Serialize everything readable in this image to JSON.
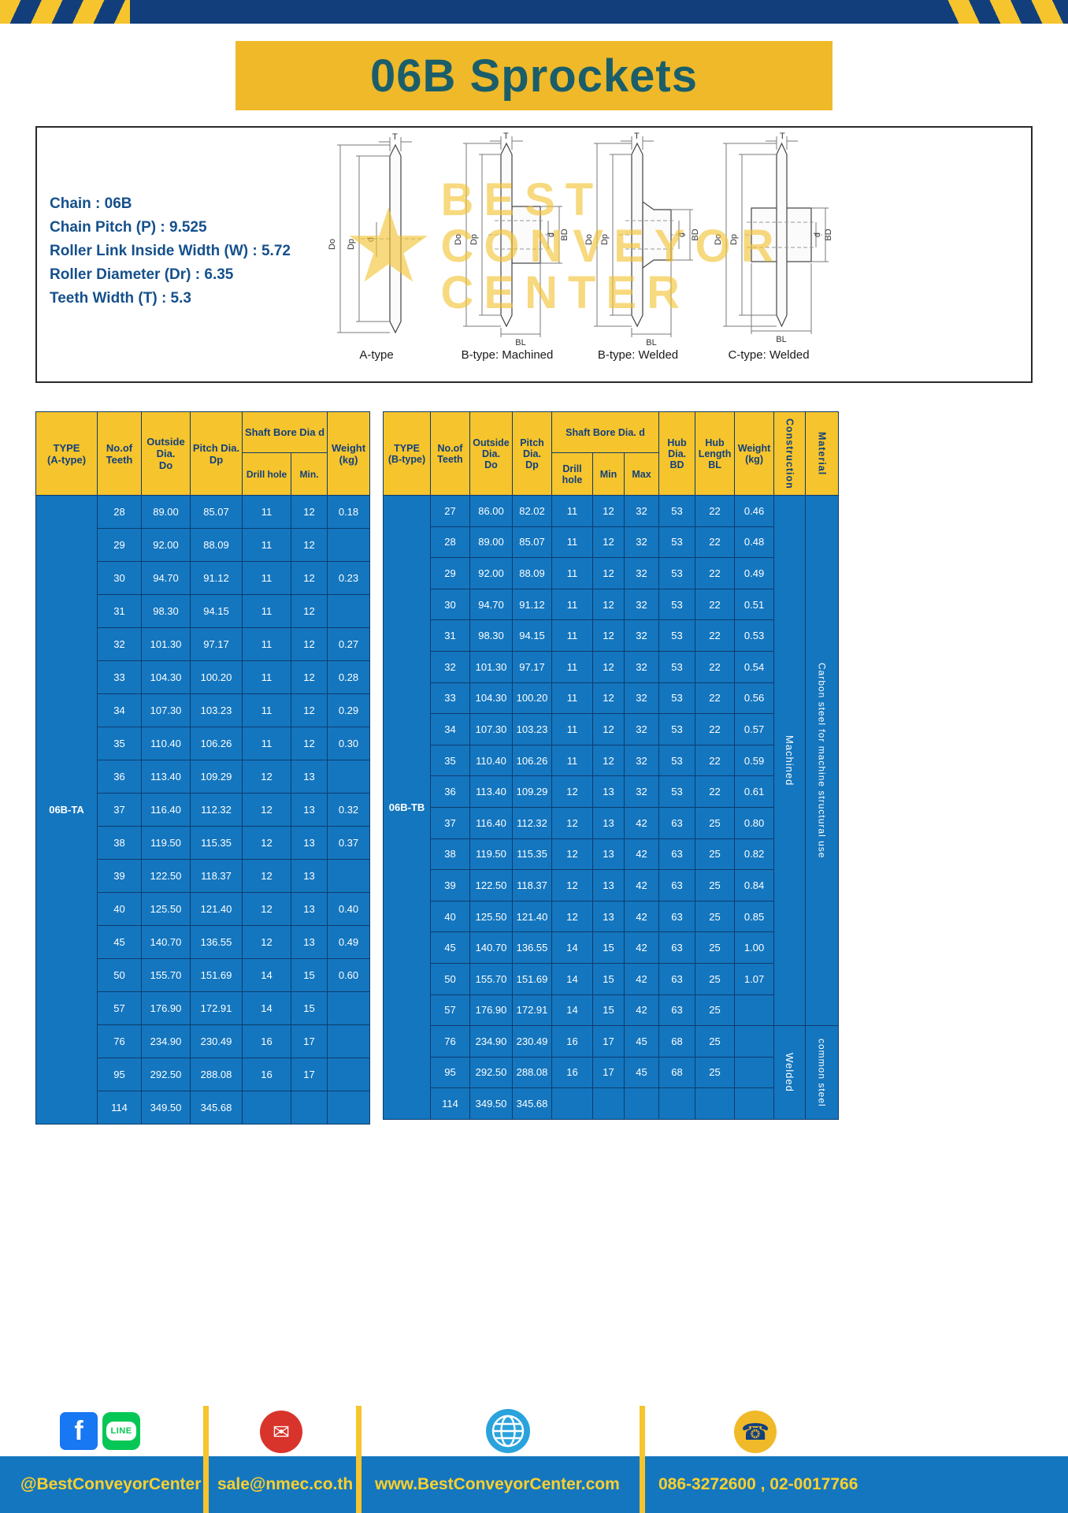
{
  "page": {
    "title": "06B Sprockets"
  },
  "specs": {
    "lines": [
      "Chain : 06B",
      "Chain Pitch (P) : 9.525",
      "Roller Link Inside Width (W) : 5.72",
      "Roller Diameter (Dr) : 6.35",
      "Teeth Width (T) : 5.3"
    ]
  },
  "watermark": {
    "star": "★",
    "line1": "BEST",
    "line2": "CONVEYOR",
    "line3": "CENTER"
  },
  "diagrams": {
    "items": [
      {
        "caption": "A-type",
        "t": "T",
        "do_label": "Do",
        "dp_label": "Dp",
        "d_label": "d"
      },
      {
        "caption": "B-type: Machined",
        "t": "T",
        "do_label": "Do",
        "dp_label": "Dp",
        "d_label": "d",
        "bd_label": "BD",
        "bl_label": "BL"
      },
      {
        "caption": "B-type: Welded",
        "t": "T",
        "do_label": "Do",
        "dp_label": "Dp",
        "d_label": "d",
        "bd_label": "BD",
        "bl_label": "BL"
      },
      {
        "caption": "C-type: Welded",
        "t": "T",
        "do_label": "Do",
        "dp_label": "Dp",
        "d_label": "d",
        "bd_label": "BD",
        "bl_label": "BL"
      }
    ]
  },
  "table_a": {
    "headers": {
      "type": "TYPE\n(A-type)",
      "teeth": "No.of\nTeeth",
      "outside": "Outside\nDia.\nDo",
      "pitch": "Pitch Dia.\nDp",
      "shaft": "Shaft Bore Dia d",
      "drill": "Drill hole",
      "min": "Min.",
      "weight": "Weight\n(kg)"
    },
    "type_value": "06B-TA",
    "rows": [
      [
        "28",
        "89.00",
        "85.07",
        "11",
        "12",
        "0.18"
      ],
      [
        "29",
        "92.00",
        "88.09",
        "11",
        "12",
        ""
      ],
      [
        "30",
        "94.70",
        "91.12",
        "11",
        "12",
        "0.23"
      ],
      [
        "31",
        "98.30",
        "94.15",
        "11",
        "12",
        ""
      ],
      [
        "32",
        "101.30",
        "97.17",
        "11",
        "12",
        "0.27"
      ],
      [
        "33",
        "104.30",
        "100.20",
        "11",
        "12",
        "0.28"
      ],
      [
        "34",
        "107.30",
        "103.23",
        "11",
        "12",
        "0.29"
      ],
      [
        "35",
        "110.40",
        "106.26",
        "11",
        "12",
        "0.30"
      ],
      [
        "36",
        "113.40",
        "109.29",
        "12",
        "13",
        ""
      ],
      [
        "37",
        "116.40",
        "112.32",
        "12",
        "13",
        "0.32"
      ],
      [
        "38",
        "119.50",
        "115.35",
        "12",
        "13",
        "0.37"
      ],
      [
        "39",
        "122.50",
        "118.37",
        "12",
        "13",
        ""
      ],
      [
        "40",
        "125.50",
        "121.40",
        "12",
        "13",
        "0.40"
      ],
      [
        "45",
        "140.70",
        "136.55",
        "12",
        "13",
        "0.49"
      ],
      [
        "50",
        "155.70",
        "151.69",
        "14",
        "15",
        "0.60"
      ],
      [
        "57",
        "176.90",
        "172.91",
        "14",
        "15",
        ""
      ],
      [
        "76",
        "234.90",
        "230.49",
        "16",
        "17",
        ""
      ],
      [
        "95",
        "292.50",
        "288.08",
        "16",
        "17",
        ""
      ],
      [
        "114",
        "349.50",
        "345.68",
        "",
        "",
        ""
      ]
    ]
  },
  "table_b": {
    "headers": {
      "type": "TYPE\n(B-type)",
      "teeth": "No.of\nTeeth",
      "outside": "Outside\nDia.\nDo",
      "pitch": "Pitch\nDia.\nDp",
      "shaft": "Shaft Bore Dia. d",
      "drill": "Drill hole",
      "min": "Min",
      "max": "Max",
      "hub_dia": "Hub\nDia.\nBD",
      "hub_len": "Hub\nLength\nBL",
      "weight": "Weight\n(kg)",
      "construction": "Construction",
      "material": "Material"
    },
    "type_value": "06B-TB",
    "construction_split": 17,
    "construction": [
      "Machined",
      "Welded"
    ],
    "material": [
      "Carbon steel for machine structural use",
      "common steel"
    ],
    "rows": [
      [
        "27",
        "86.00",
        "82.02",
        "11",
        "12",
        "32",
        "53",
        "22",
        "0.46"
      ],
      [
        "28",
        "89.00",
        "85.07",
        "11",
        "12",
        "32",
        "53",
        "22",
        "0.48"
      ],
      [
        "29",
        "92.00",
        "88.09",
        "11",
        "12",
        "32",
        "53",
        "22",
        "0.49"
      ],
      [
        "30",
        "94.70",
        "91.12",
        "11",
        "12",
        "32",
        "53",
        "22",
        "0.51"
      ],
      [
        "31",
        "98.30",
        "94.15",
        "11",
        "12",
        "32",
        "53",
        "22",
        "0.53"
      ],
      [
        "32",
        "101.30",
        "97.17",
        "11",
        "12",
        "32",
        "53",
        "22",
        "0.54"
      ],
      [
        "33",
        "104.30",
        "100.20",
        "11",
        "12",
        "32",
        "53",
        "22",
        "0.56"
      ],
      [
        "34",
        "107.30",
        "103.23",
        "11",
        "12",
        "32",
        "53",
        "22",
        "0.57"
      ],
      [
        "35",
        "110.40",
        "106.26",
        "11",
        "12",
        "32",
        "53",
        "22",
        "0.59"
      ],
      [
        "36",
        "113.40",
        "109.29",
        "12",
        "13",
        "32",
        "53",
        "22",
        "0.61"
      ],
      [
        "37",
        "116.40",
        "112.32",
        "12",
        "13",
        "42",
        "63",
        "25",
        "0.80"
      ],
      [
        "38",
        "119.50",
        "115.35",
        "12",
        "13",
        "42",
        "63",
        "25",
        "0.82"
      ],
      [
        "39",
        "122.50",
        "118.37",
        "12",
        "13",
        "42",
        "63",
        "25",
        "0.84"
      ],
      [
        "40",
        "125.50",
        "121.40",
        "12",
        "13",
        "42",
        "63",
        "25",
        "0.85"
      ],
      [
        "45",
        "140.70",
        "136.55",
        "14",
        "15",
        "42",
        "63",
        "25",
        "1.00"
      ],
      [
        "50",
        "155.70",
        "151.69",
        "14",
        "15",
        "42",
        "63",
        "25",
        "1.07"
      ],
      [
        "57",
        "176.90",
        "172.91",
        "14",
        "15",
        "42",
        "63",
        "25",
        ""
      ],
      [
        "76",
        "234.90",
        "230.49",
        "16",
        "17",
        "45",
        "68",
        "25",
        ""
      ],
      [
        "95",
        "292.50",
        "288.08",
        "16",
        "17",
        "45",
        "68",
        "25",
        ""
      ],
      [
        "114",
        "349.50",
        "345.68",
        "",
        "",
        "",
        "",
        "",
        ""
      ]
    ]
  },
  "footer": {
    "social_handle": "@BestConveyorCenter",
    "email": "sale@nmec.co.th",
    "website": "www.BestConveyorCenter.com",
    "phone": "086-3272600 , 02-0017766",
    "icons": {
      "facebook": "f",
      "line": "LINE",
      "mail": "✉",
      "phone": "☎"
    }
  },
  "colors": {
    "table_blue": "#1476bf",
    "border_navy": "#0d3c6d",
    "header_yellow": "#f6c42c",
    "title_yellow": "#f0b929",
    "title_teal": "#1b5e6a",
    "spec_navy": "#15508c",
    "footer_text_yellow": "#ffd02b"
  }
}
